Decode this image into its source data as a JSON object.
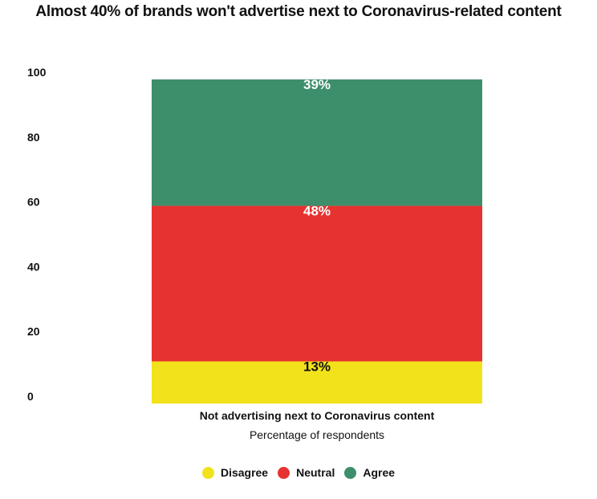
{
  "chart_data": {
    "type": "bar",
    "stacked": true,
    "title": "Almost 40% of brands won't advertise next to Coronavirus-related content",
    "categories": [
      "Not advertising next to Coronavirus content"
    ],
    "xlabel": "Percentage of respondents",
    "ylabel": "",
    "ylim": [
      0,
      100
    ],
    "y_ticks": [
      0,
      20,
      40,
      60,
      80,
      100
    ],
    "grid": false,
    "legend_position": "bottom",
    "series": [
      {
        "name": "Disagree",
        "values": [
          13
        ],
        "label": "13%",
        "color": "#f2e21c",
        "label_color": "#111111"
      },
      {
        "name": "Neutral",
        "values": [
          48
        ],
        "label": "48%",
        "color": "#e6332f",
        "label_color": "#ffffff"
      },
      {
        "name": "Agree",
        "values": [
          39
        ],
        "label": "39%",
        "color": "#3d8f6b",
        "label_color": "#ffffff"
      }
    ]
  }
}
